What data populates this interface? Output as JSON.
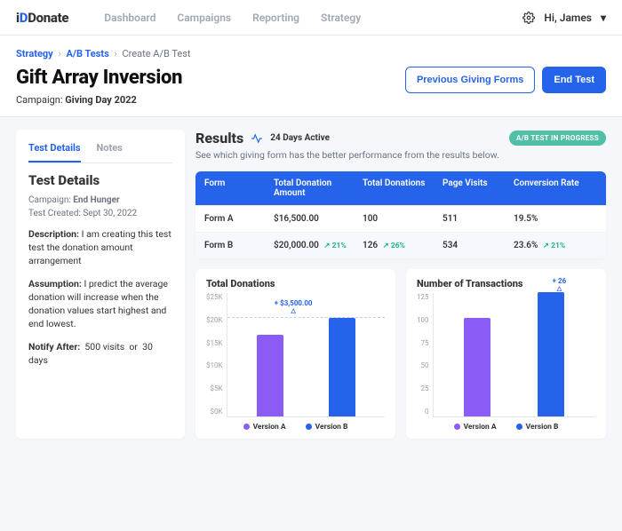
{
  "brand": "Donate",
  "nav": [
    "Dashboard",
    "Campaigns",
    "Reporting",
    "Strategy"
  ],
  "user": "Hi, James",
  "breadcrumb": [
    "Strategy",
    "A/B Tests",
    "Create A/B Test"
  ],
  "page_title": "Gift Array Inversion",
  "campaign_label": "Campaign:",
  "campaign_value": "Giving Day 2022",
  "btn_prev": "Previous Giving Forms",
  "btn_end": "End Test",
  "tabs": [
    "Test Details",
    "Notes"
  ],
  "panel_heading": "Test Details",
  "panel_campaign_label": "Campaign:",
  "panel_campaign_value": "End Hunger",
  "panel_created": "Test Created: Sept 30, 2022",
  "desc_label": "Description:",
  "desc_text": "I am creating this test test the donation amount arrangement",
  "assump_label": "Assumption:",
  "assump_text": "I predict the average donation will increase when the donation values start highest and end lowest.",
  "notify_label": "Notify After:",
  "notify_v1": "500 visits",
  "notify_or": "or",
  "notify_v2": "30 days",
  "results_title": "Results",
  "days_active": "24 Days Active",
  "badge": "A/B TEST IN PROGRESS",
  "results_sub": "See which giving form has the better performance from the results below.",
  "columns": [
    "Form",
    "Total Donation Amount",
    "Total Donations",
    "Page Visits",
    "Conversion Rate"
  ],
  "rows": [
    {
      "form": "Form A",
      "amount": "$16,500.00",
      "amount_d": "",
      "donations": "100",
      "donations_d": "",
      "visits": "511",
      "conv": "19.5%",
      "conv_d": ""
    },
    {
      "form": "Form B",
      "amount": "$20,000.00",
      "amount_d": "↗ 21%",
      "donations": "126",
      "donations_d": "↗ 26%",
      "visits": "534",
      "conv": "23.6%",
      "conv_d": "↗ 21%"
    }
  ],
  "chart1": {
    "title": "Total Donations",
    "yticks": [
      "$25K",
      "$20K",
      "$15K",
      "$10K",
      "$5K",
      "$0K"
    ],
    "ymax": 25,
    "a_value": 16.5,
    "b_value": 20,
    "callout": "+ $3,500.00",
    "colors": {
      "a": "#8b5cf6",
      "b": "#2563eb"
    },
    "legend": [
      "Version A",
      "Version B"
    ]
  },
  "chart2": {
    "title": "Number of Transactions",
    "yticks": [
      "125",
      "100",
      "75",
      "50",
      "25",
      "0"
    ],
    "ymax": 125,
    "a_value": 100,
    "b_value": 126,
    "callout": "+ 26",
    "colors": {
      "a": "#8b5cf6",
      "b": "#2563eb"
    },
    "legend": [
      "Version A",
      "Version B"
    ]
  }
}
